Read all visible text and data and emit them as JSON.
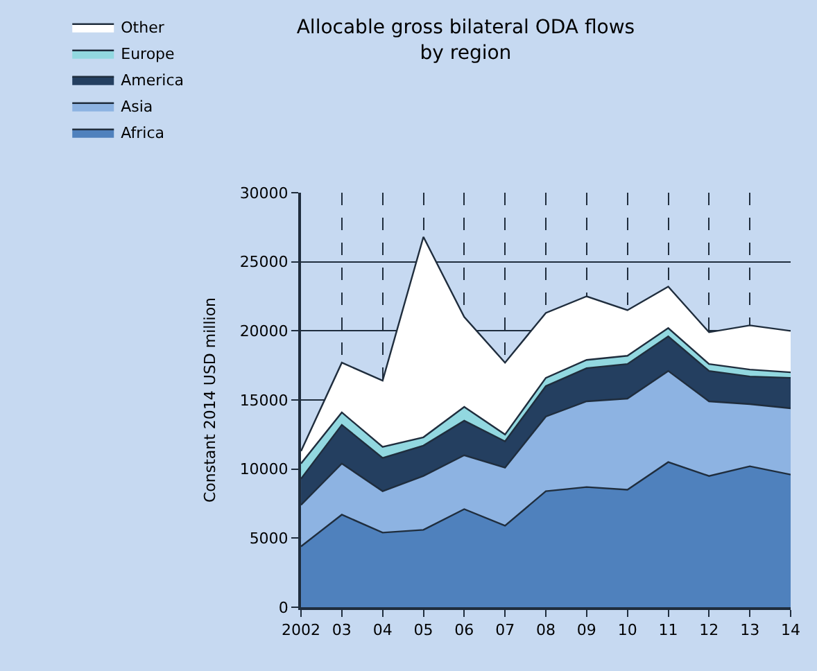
{
  "chart_data": {
    "type": "area",
    "title": "Allocable gross bilateral ODA flows\nby region",
    "ylabel": "Constant 2014 USD million",
    "categories": [
      "2002",
      "03",
      "04",
      "05",
      "06",
      "07",
      "08",
      "09",
      "10",
      "11",
      "12",
      "13",
      "14"
    ],
    "stacked": true,
    "series": [
      {
        "name": "Africa",
        "color": "#4f81bd",
        "values": [
          4400,
          6700,
          5400,
          5600,
          7100,
          5900,
          8400,
          8700,
          8500,
          10500,
          9500,
          10200,
          9600
        ]
      },
      {
        "name": "Asia",
        "color": "#8db3e2",
        "values": [
          3000,
          3700,
          3000,
          3900,
          3900,
          4200,
          5400,
          6200,
          6600,
          6600,
          5400,
          4500,
          4800
        ]
      },
      {
        "name": "America",
        "color": "#243f60",
        "values": [
          1900,
          2800,
          2400,
          2200,
          2500,
          1900,
          2200,
          2400,
          2500,
          2500,
          2200,
          2000,
          2200
        ]
      },
      {
        "name": "Europe",
        "color": "#92d8e0",
        "values": [
          1100,
          900,
          800,
          600,
          1000,
          500,
          600,
          600,
          600,
          600,
          500,
          500,
          400
        ]
      },
      {
        "name": "Other",
        "color": "#ffffff",
        "values": [
          900,
          3600,
          4800,
          14500,
          6500,
          5200,
          4700,
          4600,
          3300,
          3000,
          2300,
          3200,
          3000
        ]
      }
    ],
    "ylim": [
      0,
      30000
    ],
    "yticks": [
      0,
      5000,
      10000,
      15000,
      20000,
      25000,
      30000
    ],
    "grid": true,
    "legend": "top left"
  }
}
